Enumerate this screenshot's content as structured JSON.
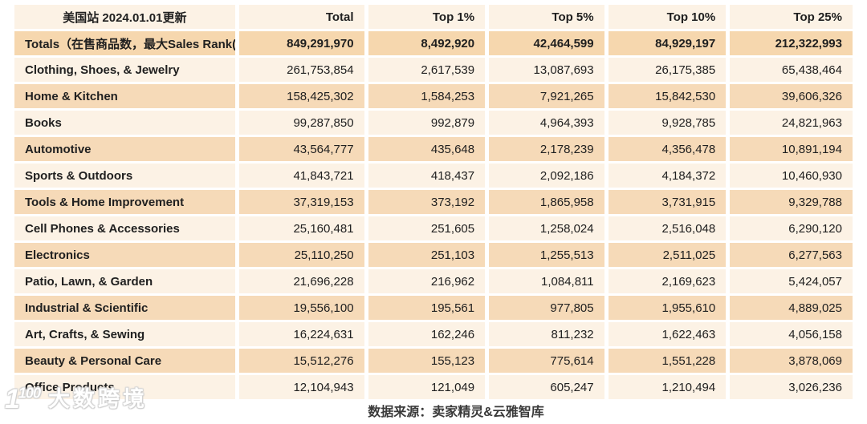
{
  "chart_data": {
    "type": "table",
    "title": "美国站 2024.01.01更新",
    "columns": [
      "Total",
      "Top 1%",
      "Top 5%",
      "Top 10%",
      "Top 25%"
    ],
    "totals": {
      "label": "Totals（在售商品数，最大Sales Rank(值)",
      "values": [
        "849,291,970",
        "8,492,920",
        "42,464,599",
        "84,929,197",
        "212,322,993"
      ]
    },
    "rows": [
      {
        "category": "Clothing, Shoes, & Jewelry",
        "values": [
          "261,753,854",
          "2,617,539",
          "13,087,693",
          "26,175,385",
          "65,438,464"
        ]
      },
      {
        "category": "Home & Kitchen",
        "values": [
          "158,425,302",
          "1,584,253",
          "7,921,265",
          "15,842,530",
          "39,606,326"
        ]
      },
      {
        "category": "Books",
        "values": [
          "99,287,850",
          "992,879",
          "4,964,393",
          "9,928,785",
          "24,821,963"
        ]
      },
      {
        "category": "Automotive",
        "values": [
          "43,564,777",
          "435,648",
          "2,178,239",
          "4,356,478",
          "10,891,194"
        ]
      },
      {
        "category": "Sports & Outdoors",
        "values": [
          "41,843,721",
          "418,437",
          "2,092,186",
          "4,184,372",
          "10,460,930"
        ]
      },
      {
        "category": "Tools & Home Improvement",
        "values": [
          "37,319,153",
          "373,192",
          "1,865,958",
          "3,731,915",
          "9,329,788"
        ]
      },
      {
        "category": "Cell Phones & Accessories",
        "values": [
          "25,160,481",
          "251,605",
          "1,258,024",
          "2,516,048",
          "6,290,120"
        ]
      },
      {
        "category": "Electronics",
        "values": [
          "25,110,250",
          "251,103",
          "1,255,513",
          "2,511,025",
          "6,277,563"
        ]
      },
      {
        "category": "Patio, Lawn, & Garden",
        "values": [
          "21,696,228",
          "216,962",
          "1,084,811",
          "2,169,623",
          "5,424,057"
        ]
      },
      {
        "category": "Industrial & Scientific",
        "values": [
          "19,556,100",
          "195,561",
          "977,805",
          "1,955,610",
          "4,889,025"
        ]
      },
      {
        "category": "Art, Crafts, & Sewing",
        "values": [
          "16,224,631",
          "162,246",
          "811,232",
          "1,622,463",
          "4,056,158"
        ]
      },
      {
        "category": "Beauty & Personal Care",
        "values": [
          "15,512,276",
          "155,123",
          "775,614",
          "1,551,228",
          "3,878,069"
        ]
      },
      {
        "category": "Office Products",
        "values": [
          "12,104,943",
          "121,049",
          "605,247",
          "1,210,494",
          "3,026,236"
        ]
      }
    ],
    "layout": {
      "grid": "off",
      "row_striping": "cream/peach alternating",
      "legend": "none"
    }
  },
  "footer": {
    "source": "数据来源：卖家精灵&云雅智库"
  },
  "watermark": {
    "icon_label": "100",
    "text": "大数跨境"
  },
  "colors": {
    "header_red": "#c00000",
    "totals_orange": "#ef9d43",
    "row_cream": "#fcf2e5",
    "row_peach": "#f6dab8",
    "totals_bg": "#f6d7ae",
    "body_text": "#202020"
  }
}
